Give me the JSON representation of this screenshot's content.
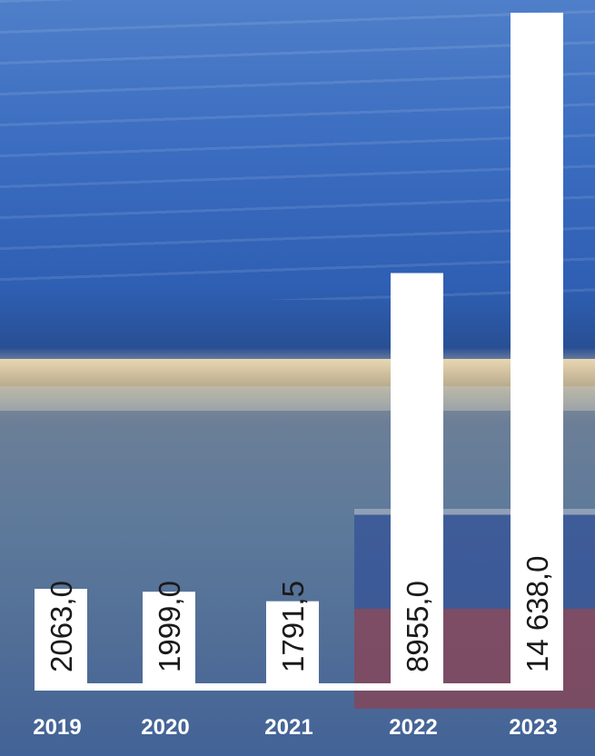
{
  "chart_data": {
    "type": "bar",
    "categories": [
      "2019",
      "2020",
      "2021",
      "2022",
      "2023"
    ],
    "values": [
      2063,
      1999,
      1791.5,
      8955,
      14638
    ],
    "value_labels": [
      "2063,0",
      "1999,0",
      "1791,5",
      "8955,0",
      "14 638,0"
    ],
    "color": "#ffffff"
  }
}
